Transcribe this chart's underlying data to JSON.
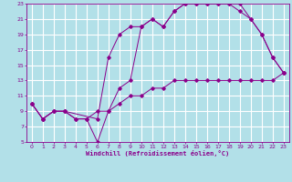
{
  "xlabel": "Windchill (Refroidissement éolien,°C)",
  "background_color": "#b2e0e8",
  "line_color": "#8B008B",
  "grid_color": "#ffffff",
  "xlim": [
    -0.5,
    23.5
  ],
  "ylim": [
    5,
    23
  ],
  "xticks": [
    0,
    1,
    2,
    3,
    4,
    5,
    6,
    7,
    8,
    9,
    10,
    11,
    12,
    13,
    14,
    15,
    16,
    17,
    18,
    19,
    20,
    21,
    22,
    23
  ],
  "yticks": [
    5,
    7,
    9,
    11,
    13,
    15,
    17,
    19,
    21,
    23
  ],
  "line1_x": [
    0,
    1,
    2,
    3,
    4,
    5,
    6,
    7,
    8,
    9,
    10,
    11,
    12,
    13,
    14,
    15,
    16,
    17,
    18,
    19,
    20,
    21,
    22,
    23
  ],
  "line1_y": [
    10,
    8,
    9,
    9,
    8,
    8,
    9,
    9,
    10,
    11,
    11,
    12,
    12,
    13,
    13,
    13,
    13,
    13,
    13,
    13,
    13,
    13,
    13,
    14
  ],
  "line2_x": [
    0,
    1,
    2,
    3,
    4,
    5,
    6,
    7,
    8,
    9,
    10,
    11,
    12,
    13,
    14,
    15,
    16,
    17,
    18,
    19,
    20,
    21,
    22,
    23
  ],
  "line2_y": [
    10,
    8,
    9,
    9,
    8,
    8,
    5,
    9,
    12,
    13,
    20,
    21,
    20,
    22,
    23,
    23,
    23,
    23,
    23,
    22,
    21,
    19,
    16,
    14
  ],
  "line3_x": [
    0,
    1,
    2,
    3,
    6,
    7,
    8,
    9,
    10,
    11,
    12,
    13,
    14,
    15,
    16,
    17,
    18,
    19,
    20,
    21,
    22,
    23
  ],
  "line3_y": [
    10,
    8,
    9,
    9,
    8,
    16,
    19,
    20,
    20,
    21,
    20,
    22,
    23,
    23,
    23,
    23,
    23,
    23,
    21,
    19,
    16,
    14
  ]
}
